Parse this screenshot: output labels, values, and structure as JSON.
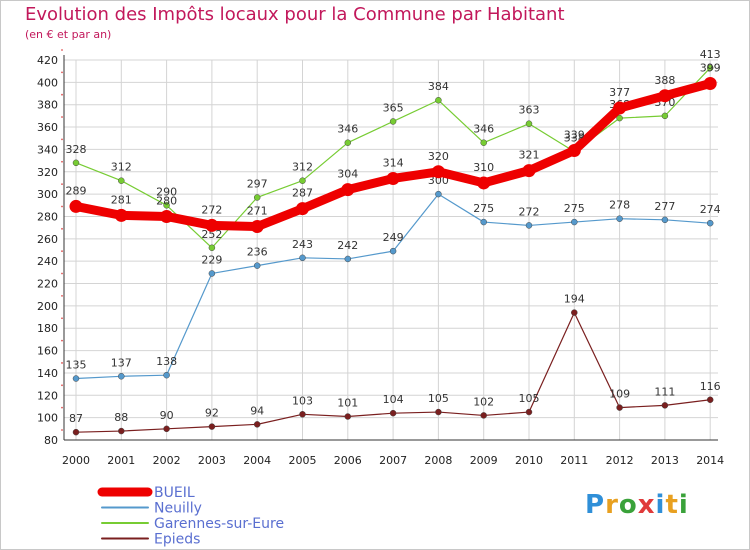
{
  "title": "Evolution des Impôts locaux pour la Commune par Habitant",
  "subtitle": "(en € et par an)",
  "brand": {
    "letters": [
      "P",
      "r",
      "o",
      "x",
      "i",
      "t",
      "i"
    ],
    "colors": [
      "#2f8fd8",
      "#e8a020",
      "#3aa23a",
      "#e03a3a",
      "#2f8fd8",
      "#e8a020",
      "#3aa23a"
    ]
  },
  "chart_data": {
    "type": "line",
    "title": "Evolution des Impôts locaux pour la Commune par Habitant",
    "subtitle": "(en € et par an)",
    "x": [
      "2000",
      "2001",
      "2002",
      "2003",
      "2004",
      "2005",
      "2006",
      "2007",
      "2008",
      "2009",
      "2010",
      "2011",
      "2012",
      "2013",
      "2014"
    ],
    "ylim": [
      80,
      420
    ],
    "yticks": [
      80,
      100,
      120,
      140,
      160,
      180,
      200,
      220,
      240,
      260,
      280,
      300,
      320,
      340,
      360,
      380,
      400,
      420
    ],
    "grid": true,
    "legend_position": "bottom-left",
    "series": [
      {
        "name": "BUEIL",
        "color": "#ee0000",
        "values": [
          289,
          281,
          280,
          272,
          271,
          287,
          304,
          314,
          320,
          310,
          321,
          339,
          377,
          388,
          399
        ]
      },
      {
        "name": "Neuilly",
        "color": "#5599cc",
        "values": [
          135,
          137,
          138,
          229,
          236,
          243,
          242,
          249,
          300,
          275,
          272,
          275,
          278,
          277,
          274
        ]
      },
      {
        "name": "Garennes-sur-Eure",
        "color": "#77cc33",
        "values": [
          328,
          312,
          290,
          252,
          297,
          312,
          346,
          365,
          384,
          346,
          363,
          338,
          368,
          370,
          413
        ]
      },
      {
        "name": "Epieds",
        "color": "#7a1f1f",
        "values": [
          87,
          88,
          90,
          92,
          94,
          103,
          101,
          104,
          105,
          102,
          105,
          194,
          109,
          111,
          116
        ]
      }
    ]
  }
}
